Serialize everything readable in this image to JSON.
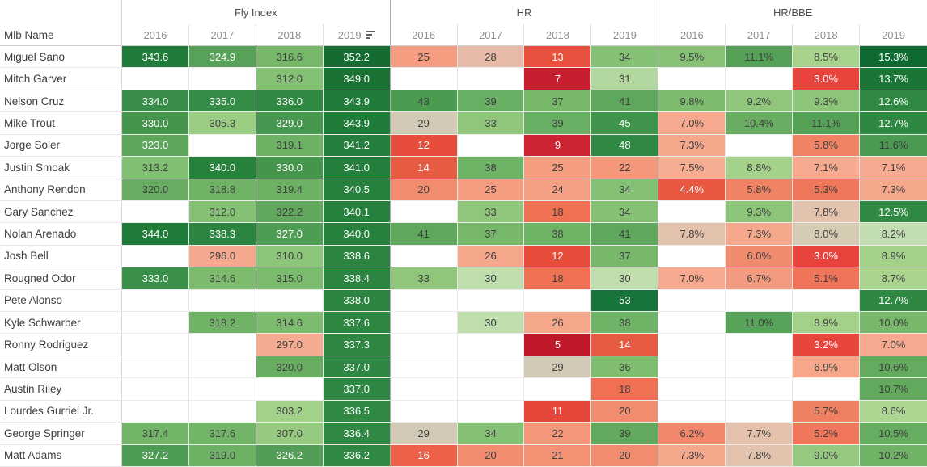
{
  "table": {
    "name_header": "Mlb Name",
    "sort": {
      "group_index": 0,
      "year_index": 3,
      "direction": "descending",
      "icon": "sort-descending-icon"
    },
    "colors": {
      "text_dark": "#3f3f3f",
      "text_light": "#ffffff",
      "year_text": "#8e8e8e",
      "group_text": "#4c4c4c",
      "grid_line": "#e6e6e6",
      "group_divider": "#acacac"
    }
  },
  "chart_data": {
    "type": "table",
    "row_label": "Mlb Name",
    "column_groups": [
      "Fly Index",
      "HR",
      "HR/BBE"
    ],
    "years": [
      "2016",
      "2017",
      "2018",
      "2019"
    ],
    "value_formats": {
      "fi": "1-decimal",
      "hr": "integer",
      "bbe": "1-decimal-percent"
    },
    "rows": [
      {
        "name": "Miguel Sano",
        "fi": [
          343.6,
          324.9,
          316.6,
          352.2
        ],
        "hr": [
          25,
          28,
          13,
          34
        ],
        "bbe": [
          9.5,
          11.1,
          8.5,
          15.3
        ],
        "styles": [
          [
            "#1f7c39",
            "w"
          ],
          [
            "#57a159",
            "w"
          ],
          [
            "#76b76a",
            "d"
          ],
          [
            "#146c33",
            "w"
          ],
          [
            "#f49d80",
            "d"
          ],
          [
            "#e7bba7",
            "d"
          ],
          [
            "#e6523d",
            "w"
          ],
          [
            "#85c175",
            "d"
          ],
          [
            "#86c176",
            "d"
          ],
          [
            "#55a158",
            "d"
          ],
          [
            "#a7d38c",
            "d"
          ],
          [
            "#0f6a31",
            "w"
          ]
        ]
      },
      {
        "name": "Mitch Garver",
        "fi": [
          null,
          null,
          312.0,
          349.0
        ],
        "hr": [
          null,
          null,
          7,
          31
        ],
        "bbe": [
          null,
          null,
          3.0,
          13.7
        ],
        "styles": [
          null,
          null,
          [
            "#85c175",
            "d"
          ],
          [
            "#1a7234",
            "w"
          ],
          null,
          null,
          [
            "#c51f30",
            "w"
          ],
          [
            "#b3d89f",
            "d"
          ],
          null,
          null,
          [
            "#e8433c",
            "w"
          ],
          [
            "#1b7536",
            "w"
          ]
        ]
      },
      {
        "name": "Nelson Cruz",
        "fi": [
          334.0,
          335.0,
          336.0,
          343.9
        ],
        "hr": [
          43,
          39,
          37,
          41
        ],
        "bbe": [
          9.8,
          9.2,
          9.3,
          12.6
        ],
        "styles": [
          [
            "#388e48",
            "w"
          ],
          [
            "#358c46",
            "w"
          ],
          [
            "#308943",
            "w"
          ],
          [
            "#1f7c39",
            "w"
          ],
          [
            "#4b9b51",
            "d"
          ],
          [
            "#68ae63",
            "d"
          ],
          [
            "#76b76a",
            "d"
          ],
          [
            "#5ea75c",
            "d"
          ],
          [
            "#7dbc6f",
            "d"
          ],
          [
            "#8fc67b",
            "d"
          ],
          [
            "#8cc57a",
            "d"
          ],
          [
            "#2f8943",
            "w"
          ]
        ]
      },
      {
        "name": "Mike Trout",
        "fi": [
          330.0,
          305.3,
          329.0,
          343.9
        ],
        "hr": [
          29,
          33,
          39,
          45
        ],
        "bbe": [
          7.0,
          10.4,
          11.1,
          12.7
        ],
        "styles": [
          [
            "#45954d",
            "w"
          ],
          [
            "#9bcd84",
            "d"
          ],
          [
            "#489750",
            "w"
          ],
          [
            "#1f7c39",
            "w"
          ],
          [
            "#d2cab6",
            "d"
          ],
          [
            "#8fc67b",
            "d"
          ],
          [
            "#68ae63",
            "d"
          ],
          [
            "#3f944c",
            "w"
          ],
          [
            "#f6a98e",
            "d"
          ],
          [
            "#68ad62",
            "d"
          ],
          [
            "#55a158",
            "d"
          ],
          [
            "#2e8842",
            "w"
          ]
        ]
      },
      {
        "name": "Jorge Soler",
        "fi": [
          323.0,
          null,
          319.1,
          341.2
        ],
        "hr": [
          12,
          null,
          9,
          48
        ],
        "bbe": [
          7.3,
          null,
          5.8,
          11.6
        ],
        "styles": [
          [
            "#5ca55b",
            "w"
          ],
          null,
          [
            "#6db164",
            "d"
          ],
          [
            "#247f3c",
            "w"
          ],
          [
            "#e64e3b",
            "w"
          ],
          null,
          [
            "#cc2433",
            "w"
          ],
          [
            "#2f8943",
            "w"
          ],
          [
            "#f5a88c",
            "d"
          ],
          null,
          [
            "#f18365",
            "d"
          ],
          [
            "#4a9a51",
            "d"
          ]
        ]
      },
      {
        "name": "Justin Smoak",
        "fi": [
          313.2,
          340.0,
          330.0,
          341.0
        ],
        "hr": [
          14,
          38,
          25,
          22
        ],
        "bbe": [
          7.5,
          8.8,
          7.1,
          7.1
        ],
        "styles": [
          [
            "#81bf72",
            "d"
          ],
          [
            "#26813d",
            "w"
          ],
          [
            "#45954d",
            "w"
          ],
          [
            "#247f3c",
            "w"
          ],
          [
            "#e85b43",
            "w"
          ],
          [
            "#6fb366",
            "d"
          ],
          [
            "#f49d80",
            "d"
          ],
          [
            "#f4977b",
            "d"
          ],
          [
            "#f6ad92",
            "d"
          ],
          [
            "#a5d28b",
            "d"
          ],
          [
            "#f6ab90",
            "d"
          ],
          [
            "#f6ab90",
            "d"
          ]
        ]
      },
      {
        "name": "Anthony Rendon",
        "fi": [
          320.0,
          318.8,
          319.4,
          340.5
        ],
        "hr": [
          20,
          25,
          24,
          34
        ],
        "bbe": [
          4.4,
          5.8,
          5.3,
          7.3
        ],
        "styles": [
          [
            "#68ad62",
            "d"
          ],
          [
            "#70b366",
            "d"
          ],
          [
            "#6db164",
            "d"
          ],
          [
            "#26813d",
            "w"
          ],
          [
            "#f28c6e",
            "d"
          ],
          [
            "#f49d80",
            "d"
          ],
          [
            "#f4a085",
            "d"
          ],
          [
            "#85c175",
            "d"
          ],
          [
            "#e95741",
            "w"
          ],
          [
            "#f18365",
            "d"
          ],
          [
            "#f0785a",
            "d"
          ],
          [
            "#f5a88c",
            "d"
          ]
        ]
      },
      {
        "name": "Gary Sanchez",
        "fi": [
          null,
          312.0,
          322.2,
          340.1
        ],
        "hr": [
          null,
          33,
          18,
          34
        ],
        "bbe": [
          null,
          9.3,
          7.8,
          12.5
        ],
        "styles": [
          null,
          [
            "#85c175",
            "d"
          ],
          [
            "#61a85e",
            "d"
          ],
          [
            "#26813d",
            "w"
          ],
          null,
          [
            "#8fc67b",
            "d"
          ],
          [
            "#ef7052",
            "d"
          ],
          [
            "#85c175",
            "d"
          ],
          null,
          [
            "#8cc57a",
            "d"
          ],
          [
            "#e3c3ae",
            "d"
          ],
          [
            "#318a44",
            "w"
          ]
        ]
      },
      {
        "name": "Nolan Arenado",
        "fi": [
          344.0,
          338.3,
          327.0,
          340.0
        ],
        "hr": [
          41,
          37,
          38,
          41
        ],
        "bbe": [
          7.8,
          7.3,
          8.0,
          8.2
        ],
        "styles": [
          [
            "#1e7b38",
            "w"
          ],
          [
            "#2b8540",
            "w"
          ],
          [
            "#4f9c54",
            "w"
          ],
          [
            "#26813d",
            "w"
          ],
          [
            "#5ea75c",
            "d"
          ],
          [
            "#76b76a",
            "d"
          ],
          [
            "#6fb366",
            "d"
          ],
          [
            "#5ea75c",
            "d"
          ],
          [
            "#e3c3ae",
            "d"
          ],
          [
            "#f5a88c",
            "d"
          ],
          [
            "#d6cbb3",
            "d"
          ],
          [
            "#c3ddb2",
            "d"
          ]
        ]
      },
      {
        "name": "Josh Bell",
        "fi": [
          null,
          296.0,
          310.0,
          338.6
        ],
        "hr": [
          null,
          26,
          12,
          37
        ],
        "bbe": [
          null,
          6.0,
          3.0,
          8.9
        ],
        "styles": [
          null,
          [
            "#f5a88e",
            "d"
          ],
          [
            "#8bc579",
            "d"
          ],
          [
            "#2b8540",
            "w"
          ],
          null,
          [
            "#f5a78c",
            "d"
          ],
          [
            "#e64e3b",
            "w"
          ],
          [
            "#76b76a",
            "d"
          ],
          null,
          [
            "#f18b6e",
            "d"
          ],
          [
            "#e8433c",
            "w"
          ],
          [
            "#a3d189",
            "d"
          ]
        ]
      },
      {
        "name": "Rougned Odor",
        "fi": [
          333.0,
          314.6,
          315.0,
          338.4
        ],
        "hr": [
          33,
          30,
          18,
          30
        ],
        "bbe": [
          7.0,
          6.7,
          5.1,
          8.7
        ],
        "styles": [
          [
            "#3b9049",
            "w"
          ],
          [
            "#7dbc6f",
            "d"
          ],
          [
            "#7bbb6e",
            "d"
          ],
          [
            "#2b8540",
            "w"
          ],
          [
            "#8fc67b",
            "d"
          ],
          [
            "#c0ddae",
            "d"
          ],
          [
            "#ef7052",
            "d"
          ],
          [
            "#c0ddae",
            "d"
          ],
          [
            "#f6a98e",
            "d"
          ],
          [
            "#f39b80",
            "d"
          ],
          [
            "#f0745a",
            "d"
          ],
          [
            "#aad48e",
            "d"
          ]
        ]
      },
      {
        "name": "Pete Alonso",
        "fi": [
          null,
          null,
          null,
          338.0
        ],
        "hr": [
          null,
          null,
          null,
          53
        ],
        "bbe": [
          null,
          null,
          null,
          12.7
        ],
        "styles": [
          null,
          null,
          null,
          [
            "#2b8540",
            "w"
          ],
          null,
          null,
          null,
          [
            "#17743a",
            "w"
          ],
          null,
          null,
          null,
          [
            "#2e8842",
            "w"
          ]
        ]
      },
      {
        "name": "Kyle Schwarber",
        "fi": [
          null,
          318.2,
          314.6,
          337.6
        ],
        "hr": [
          null,
          30,
          26,
          38
        ],
        "bbe": [
          null,
          11.0,
          8.9,
          10.0
        ],
        "styles": [
          null,
          [
            "#70b366",
            "d"
          ],
          [
            "#7dbc6f",
            "d"
          ],
          [
            "#2d8741",
            "w"
          ],
          null,
          [
            "#c0ddae",
            "d"
          ],
          [
            "#f5a78c",
            "d"
          ],
          [
            "#6fb366",
            "d"
          ],
          null,
          [
            "#57a359",
            "d"
          ],
          [
            "#a3d189",
            "d"
          ],
          [
            "#77b86b",
            "d"
          ]
        ]
      },
      {
        "name": "Ronny Rodriguez",
        "fi": [
          null,
          null,
          297.0,
          337.3
        ],
        "hr": [
          null,
          null,
          5,
          14
        ],
        "bbe": [
          null,
          null,
          3.2,
          7.0
        ],
        "styles": [
          null,
          null,
          [
            "#f5ab91",
            "d"
          ],
          [
            "#2d8741",
            "w"
          ],
          null,
          null,
          [
            "#c0182b",
            "w"
          ],
          [
            "#e85b43",
            "w"
          ],
          null,
          null,
          [
            "#e8463d",
            "w"
          ],
          [
            "#f6a98e",
            "d"
          ]
        ]
      },
      {
        "name": "Matt Olson",
        "fi": [
          null,
          null,
          320.0,
          337.0
        ],
        "hr": [
          null,
          null,
          29,
          36
        ],
        "bbe": [
          null,
          null,
          6.9,
          10.6
        ],
        "styles": [
          null,
          null,
          [
            "#68ad62",
            "d"
          ],
          [
            "#2e8742",
            "w"
          ],
          null,
          null,
          [
            "#d2cab6",
            "d"
          ],
          [
            "#7fbd70",
            "d"
          ],
          null,
          null,
          [
            "#f5a68b",
            "d"
          ],
          [
            "#64ab60",
            "d"
          ]
        ]
      },
      {
        "name": "Austin Riley",
        "fi": [
          null,
          null,
          null,
          337.0
        ],
        "hr": [
          null,
          null,
          null,
          18
        ],
        "bbe": [
          null,
          null,
          null,
          10.7
        ],
        "styles": [
          null,
          null,
          null,
          [
            "#2e8742",
            "w"
          ],
          null,
          null,
          null,
          [
            "#ef7052",
            "d"
          ],
          null,
          null,
          null,
          [
            "#62a95e",
            "d"
          ]
        ]
      },
      {
        "name": "Lourdes Gurriel Jr.",
        "fi": [
          null,
          null,
          303.2,
          336.5
        ],
        "hr": [
          null,
          null,
          11,
          20
        ],
        "bbe": [
          null,
          null,
          5.7,
          8.6
        ],
        "styles": [
          null,
          null,
          [
            "#a2d189",
            "d"
          ],
          [
            "#308943",
            "w"
          ],
          null,
          null,
          [
            "#e4473a",
            "w"
          ],
          [
            "#f28c6e",
            "d"
          ],
          null,
          null,
          [
            "#f08062",
            "d"
          ],
          [
            "#add693",
            "d"
          ]
        ]
      },
      {
        "name": "George Springer",
        "fi": [
          317.4,
          317.6,
          307.0,
          336.4
        ],
        "hr": [
          29,
          34,
          22,
          39
        ],
        "bbe": [
          6.2,
          7.7,
          5.2,
          10.5
        ],
        "styles": [
          [
            "#73b568",
            "d"
          ],
          [
            "#73b568",
            "d"
          ],
          [
            "#95ca80",
            "d"
          ],
          [
            "#308943",
            "w"
          ],
          [
            "#d2cab6",
            "d"
          ],
          [
            "#85c175",
            "d"
          ],
          [
            "#f4977b",
            "d"
          ],
          [
            "#62a95e",
            "d"
          ],
          [
            "#f0876a",
            "d"
          ],
          [
            "#e4c2ad",
            "d"
          ],
          [
            "#f0765c",
            "d"
          ],
          [
            "#66ac61",
            "d"
          ]
        ]
      },
      {
        "name": "Matt Adams",
        "fi": [
          327.2,
          319.0,
          326.2,
          336.2
        ],
        "hr": [
          16,
          20,
          21,
          20
        ],
        "bbe": [
          7.3,
          7.8,
          9.0,
          10.2
        ],
        "styles": [
          [
            "#4f9c54",
            "w"
          ],
          [
            "#6db164",
            "d"
          ],
          [
            "#529e56",
            "w"
          ],
          [
            "#308943",
            "w"
          ],
          [
            "#ec6148",
            "w"
          ],
          [
            "#f28c6e",
            "d"
          ],
          [
            "#f39175",
            "d"
          ],
          [
            "#f28c6e",
            "d"
          ],
          [
            "#f5a88c",
            "d"
          ],
          [
            "#e3c3ae",
            "d"
          ],
          [
            "#95c97f",
            "d"
          ],
          [
            "#70b366",
            "d"
          ]
        ]
      }
    ]
  }
}
